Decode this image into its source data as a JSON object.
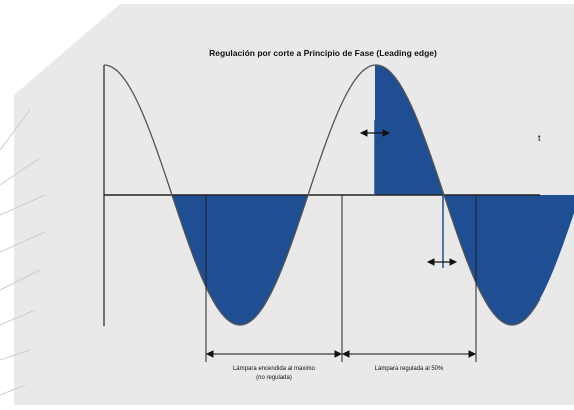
{
  "title": "Regulación por corte a Principio de Fase (Leading edge)",
  "axis_label": "t",
  "segments": [
    {
      "label_lines": [
        "Lámpara encendida al máximo",
        "(no regulada)"
      ]
    },
    {
      "label_lines": [
        "Lámpara regulada al 50%"
      ]
    }
  ],
  "colors": {
    "page": "#ffffff",
    "panel": "#e9e9ea",
    "deco_lines": "#c9cdd9",
    "fill": "#1f4e93",
    "curve": "#555555",
    "axis": "#222222",
    "text": "#111111"
  }
}
